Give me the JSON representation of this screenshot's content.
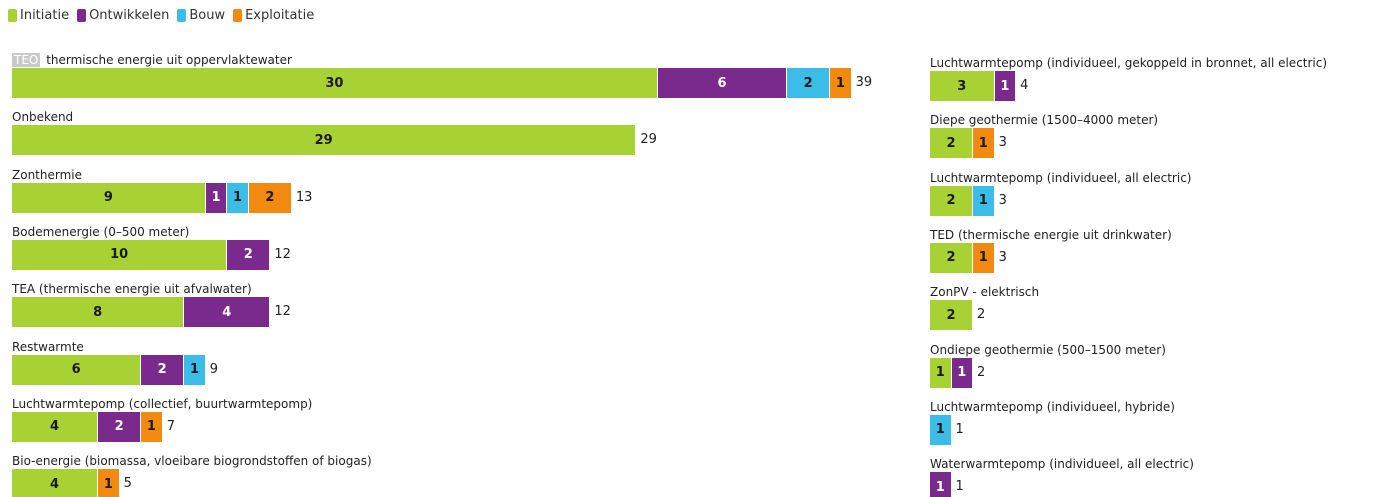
{
  "legend": [
    {
      "key": "initiatie",
      "label": "Initiatie",
      "color": "#a8d234"
    },
    {
      "key": "ontwikkelen",
      "label": "Ontwikkelen",
      "color": "#7a2a8c"
    },
    {
      "key": "bouw",
      "label": "Bouw",
      "color": "#3bbde8"
    },
    {
      "key": "exploitatie",
      "label": "Exploitatie",
      "color": "#f28a10"
    }
  ],
  "chart_data": {
    "type": "bar",
    "orientation": "horizontal",
    "stacked": true,
    "series_order": [
      "Initiatie",
      "Ontwikkelen",
      "Bouw",
      "Exploitatie"
    ],
    "columns": [
      {
        "items": [
          {
            "prefix": "TEO",
            "label": "thermische energie uit oppervlaktewater",
            "values": [
              30,
              6,
              2,
              1
            ],
            "total": 39
          },
          {
            "label": "Onbekend",
            "values": [
              29,
              0,
              0,
              0
            ],
            "total": 29
          },
          {
            "label": "Zonthermie",
            "values": [
              9,
              1,
              1,
              2
            ],
            "total": 13
          },
          {
            "label": "Bodemenergie (0–500 meter)",
            "values": [
              10,
              2,
              0,
              0
            ],
            "total": 12
          },
          {
            "label": "TEA (thermische energie uit afvalwater)",
            "values": [
              8,
              4,
              0,
              0
            ],
            "total": 12
          },
          {
            "label": "Restwarmte",
            "values": [
              6,
              2,
              1,
              0
            ],
            "total": 9
          },
          {
            "label": "Luchtwarmtepomp (collectief, buurtwarmtepomp)",
            "values": [
              4,
              2,
              0,
              1
            ],
            "total": 7
          },
          {
            "label": "Bio-energie (biomassa, vloeibare biogrondstoffen of biogas)",
            "values": [
              4,
              0,
              0,
              1
            ],
            "total": 5
          }
        ]
      },
      {
        "items": [
          {
            "label": "Luchtwarmtepomp (individueel, gekoppeld in bronnet, all electric)",
            "values": [
              3,
              1,
              0,
              0
            ],
            "total": 4
          },
          {
            "label": "Diepe geothermie (1500–4000 meter)",
            "values": [
              2,
              0,
              0,
              1
            ],
            "total": 3
          },
          {
            "label": "Luchtwarmtepomp (individueel, all electric)",
            "values": [
              2,
              0,
              1,
              0
            ],
            "total": 3
          },
          {
            "label": "TED (thermische energie uit drinkwater)",
            "values": [
              2,
              0,
              0,
              1
            ],
            "total": 3
          },
          {
            "label": "ZonPV - elektrisch",
            "values": [
              2,
              0,
              0,
              0
            ],
            "total": 2
          },
          {
            "label": "Ondiepe geothermie (500–1500 meter)",
            "values": [
              1,
              1,
              0,
              0
            ],
            "total": 2
          },
          {
            "label": "Luchtwarmtepomp (individueel, hybride)",
            "values": [
              0,
              0,
              1,
              0
            ],
            "total": 1
          },
          {
            "label": "Waterwarmtepomp (individueel, all electric)",
            "values": [
              0,
              1,
              0,
              0
            ],
            "total": 1
          }
        ]
      }
    ]
  }
}
